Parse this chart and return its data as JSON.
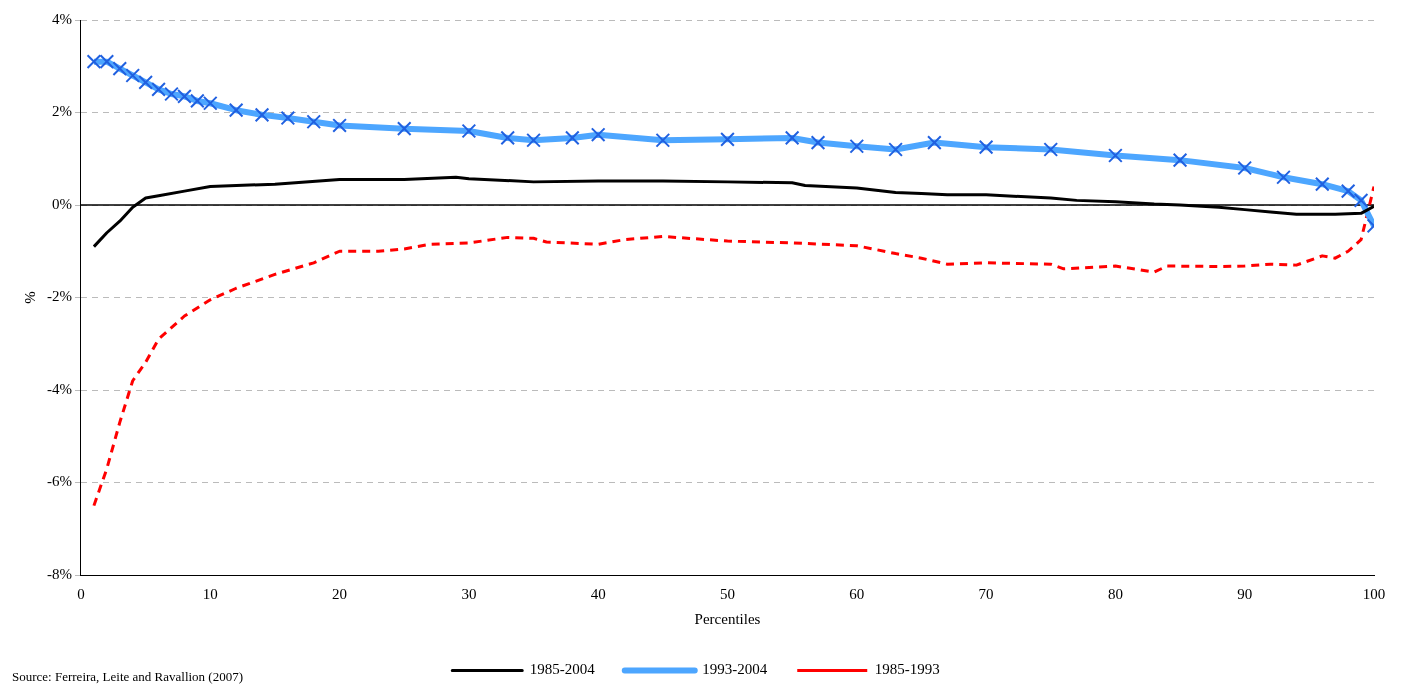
{
  "chart_data": {
    "type": "line",
    "xlabel": "Percentiles",
    "ylabel": "%",
    "xlim": [
      0,
      100
    ],
    "xticks": [
      0,
      10,
      20,
      30,
      40,
      50,
      60,
      70,
      80,
      90,
      100
    ],
    "ylim": [
      -8,
      4
    ],
    "yticks": [
      {
        "value": -8,
        "label": "-8%"
      },
      {
        "value": -6,
        "label": "-6%"
      },
      {
        "value": -4,
        "label": "-4%"
      },
      {
        "value": -2,
        "label": "-2%"
      },
      {
        "value": 0,
        "label": "0%"
      },
      {
        "value": 2,
        "label": "2%"
      },
      {
        "value": 4,
        "label": "4%"
      }
    ],
    "grid": "y",
    "legend": "bottom",
    "ref_lines": [
      {
        "axis": "y",
        "value": 0,
        "color": "#000000",
        "line_style": "solid"
      }
    ],
    "annotations": [
      "Source: Ferreira, Leite and Ravallion (2007)"
    ],
    "series": [
      {
        "name": "1985-2004",
        "color": "#000000",
        "line_style": "solid",
        "marker": "none",
        "x": [
          1,
          2,
          3,
          4,
          5,
          6,
          8,
          10,
          15,
          20,
          22,
          25,
          29,
          30,
          35,
          40,
          45,
          50,
          55,
          56,
          60,
          63,
          65,
          67,
          70,
          75,
          77,
          80,
          83,
          85,
          88,
          90,
          92,
          94,
          96,
          97,
          99,
          100
        ],
        "values": [
          -0.9,
          -0.6,
          -0.35,
          -0.05,
          0.15,
          0.2,
          0.3,
          0.4,
          0.45,
          0.55,
          0.55,
          0.55,
          0.6,
          0.57,
          0.5,
          0.52,
          0.52,
          0.5,
          0.48,
          0.42,
          0.37,
          0.27,
          0.25,
          0.22,
          0.22,
          0.15,
          0.1,
          0.07,
          0.02,
          0,
          -0.05,
          -0.1,
          -0.15,
          -0.2,
          -0.2,
          -0.2,
          -0.18,
          -0.03
        ]
      },
      {
        "name": "1993-2004",
        "color": "#4da6ff",
        "line_style": "solid",
        "marker": "cross",
        "x": [
          1,
          2,
          3,
          4,
          5,
          6,
          7,
          8,
          9,
          10,
          12,
          14,
          16,
          18,
          20,
          25,
          30,
          33,
          35,
          38,
          40,
          45,
          50,
          55,
          57,
          60,
          63,
          66,
          70,
          75,
          80,
          85,
          90,
          93,
          96,
          98,
          99,
          100
        ],
        "values": [
          3.1,
          3.1,
          2.95,
          2.8,
          2.65,
          2.5,
          2.4,
          2.35,
          2.25,
          2.2,
          2.05,
          1.95,
          1.88,
          1.8,
          1.72,
          1.65,
          1.6,
          1.45,
          1.4,
          1.45,
          1.52,
          1.4,
          1.42,
          1.45,
          1.35,
          1.27,
          1.2,
          1.35,
          1.25,
          1.2,
          1.07,
          0.97,
          0.8,
          0.6,
          0.45,
          0.3,
          0.1,
          -0.45
        ]
      },
      {
        "name": "1985-1993",
        "color": "#ff0000",
        "line_style": "dashed",
        "marker": "none",
        "x": [
          1,
          2,
          3,
          4,
          5,
          6,
          8,
          10,
          12,
          15,
          18,
          20,
          23,
          25,
          27,
          30,
          33,
          35,
          36,
          40,
          42,
          45,
          50,
          55,
          60,
          63,
          65,
          67,
          70,
          75,
          76,
          80,
          83,
          84,
          88,
          90,
          92,
          94,
          96,
          97,
          98,
          99,
          100
        ],
        "values": [
          -6.5,
          -5.7,
          -4.7,
          -3.8,
          -3.4,
          -2.9,
          -2.4,
          -2.05,
          -1.8,
          -1.5,
          -1.25,
          -1,
          -1,
          -0.95,
          -0.85,
          -0.82,
          -0.7,
          -0.72,
          -0.8,
          -0.85,
          -0.75,
          -0.68,
          -0.78,
          -0.82,
          -0.88,
          -1.05,
          -1.15,
          -1.28,
          -1.25,
          -1.28,
          -1.38,
          -1.32,
          -1.45,
          -1.32,
          -1.33,
          -1.32,
          -1.28,
          -1.3,
          -1.1,
          -1.15,
          -1,
          -0.75,
          0.4
        ]
      }
    ]
  }
}
